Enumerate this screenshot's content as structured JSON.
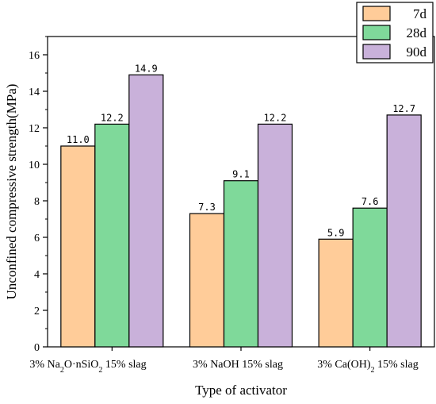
{
  "chart_data": {
    "type": "bar",
    "title": "",
    "xlabel": "Type of activator",
    "ylabel": "Unconfined compressive strength(MPa)",
    "ylim": [
      0,
      17
    ],
    "yticks": [
      0,
      2,
      4,
      6,
      8,
      10,
      12,
      14,
      16
    ],
    "grid": false,
    "legend_position": "top-right",
    "categories": [
      {
        "prefix": "3% Na",
        "sub1": "2",
        "mid": "O·nSiO",
        "sub2": "2",
        "suffix": " 15% slag"
      },
      {
        "prefix": "3% NaOH  15% slag",
        "sub1": "",
        "mid": "",
        "sub2": "",
        "suffix": ""
      },
      {
        "prefix": "3% Ca(OH)",
        "sub1": "2",
        "mid": " 15% slag",
        "sub2": "",
        "suffix": ""
      }
    ],
    "series": [
      {
        "name": "7d",
        "color": "#FFCC99",
        "values": [
          11.0,
          7.3,
          5.9
        ],
        "labels": [
          "11.0",
          "7.3",
          "5.9"
        ]
      },
      {
        "name": "28d",
        "color": "#7FD99A",
        "values": [
          12.2,
          9.1,
          7.6
        ],
        "labels": [
          "12.2",
          "9.1",
          "7.6"
        ]
      },
      {
        "name": "90d",
        "color": "#C9B1DA",
        "values": [
          14.9,
          12.2,
          12.7
        ],
        "labels": [
          "14.9",
          "12.2",
          "12.7"
        ]
      }
    ]
  }
}
